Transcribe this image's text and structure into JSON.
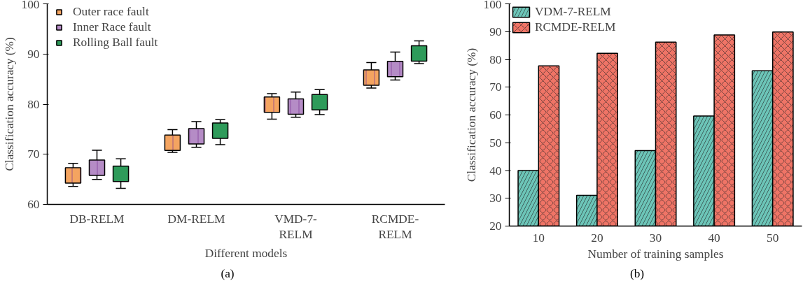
{
  "chart_data": [
    {
      "type": "scatter",
      "xlabel": "Different models",
      "ylabel": "Classification accuracy (%)",
      "annotations": [
        "(a)"
      ],
      "categories": [
        "DB-RELM",
        "DM-RELM",
        "VMD-7-\nRELM",
        "RCMDE-\nRELM"
      ],
      "ylim": [
        60,
        100
      ],
      "yticks": [
        60,
        70,
        80,
        90,
        100
      ],
      "marker": "square",
      "legend": "top left",
      "series": [
        {
          "name": "Outer race fault",
          "color": "#f4a460",
          "values": [
            65.8,
            72.3,
            79.9,
            85.3
          ],
          "errors": [
            [
              63.6,
              68.2
            ],
            [
              70.4,
              74.9
            ],
            [
              77.0,
              82.1
            ],
            [
              83.2,
              88.3
            ]
          ]
        },
        {
          "name": "Inner Race fault",
          "color": "#b58cc6",
          "values": [
            67.3,
            73.6,
            79.5,
            87.0
          ],
          "errors": [
            [
              65.0,
              70.8
            ],
            [
              71.4,
              76.5
            ],
            [
              77.4,
              82.4
            ],
            [
              84.8,
              90.4
            ]
          ]
        },
        {
          "name": "Rolling Ball fault",
          "color": "#2e9b5a",
          "values": [
            66.1,
            74.7,
            80.4,
            90.1
          ],
          "errors": [
            [
              63.2,
              69.1
            ],
            [
              71.9,
              76.9
            ],
            [
              77.9,
              82.9
            ],
            [
              88.1,
              92.6
            ]
          ]
        }
      ]
    },
    {
      "type": "bar",
      "xlabel": "Number of training samples",
      "ylabel": "Classification accuracy (%)",
      "annotations": [
        "(b)"
      ],
      "categories": [
        "10",
        "20",
        "30",
        "40",
        "50"
      ],
      "ylim": [
        20,
        100
      ],
      "yticks": [
        20,
        30,
        40,
        50,
        60,
        70,
        80,
        90,
        100
      ],
      "legend": "top left",
      "series": [
        {
          "name": "VDM-7-RELM",
          "color": "#6cc5b8",
          "values": [
            40.0,
            31.1,
            47.2,
            59.6,
            75.9
          ]
        },
        {
          "name": "RCMDE-RELM",
          "color": "#ef7466",
          "values": [
            77.7,
            82.2,
            86.2,
            88.8,
            89.9
          ]
        }
      ]
    }
  ]
}
